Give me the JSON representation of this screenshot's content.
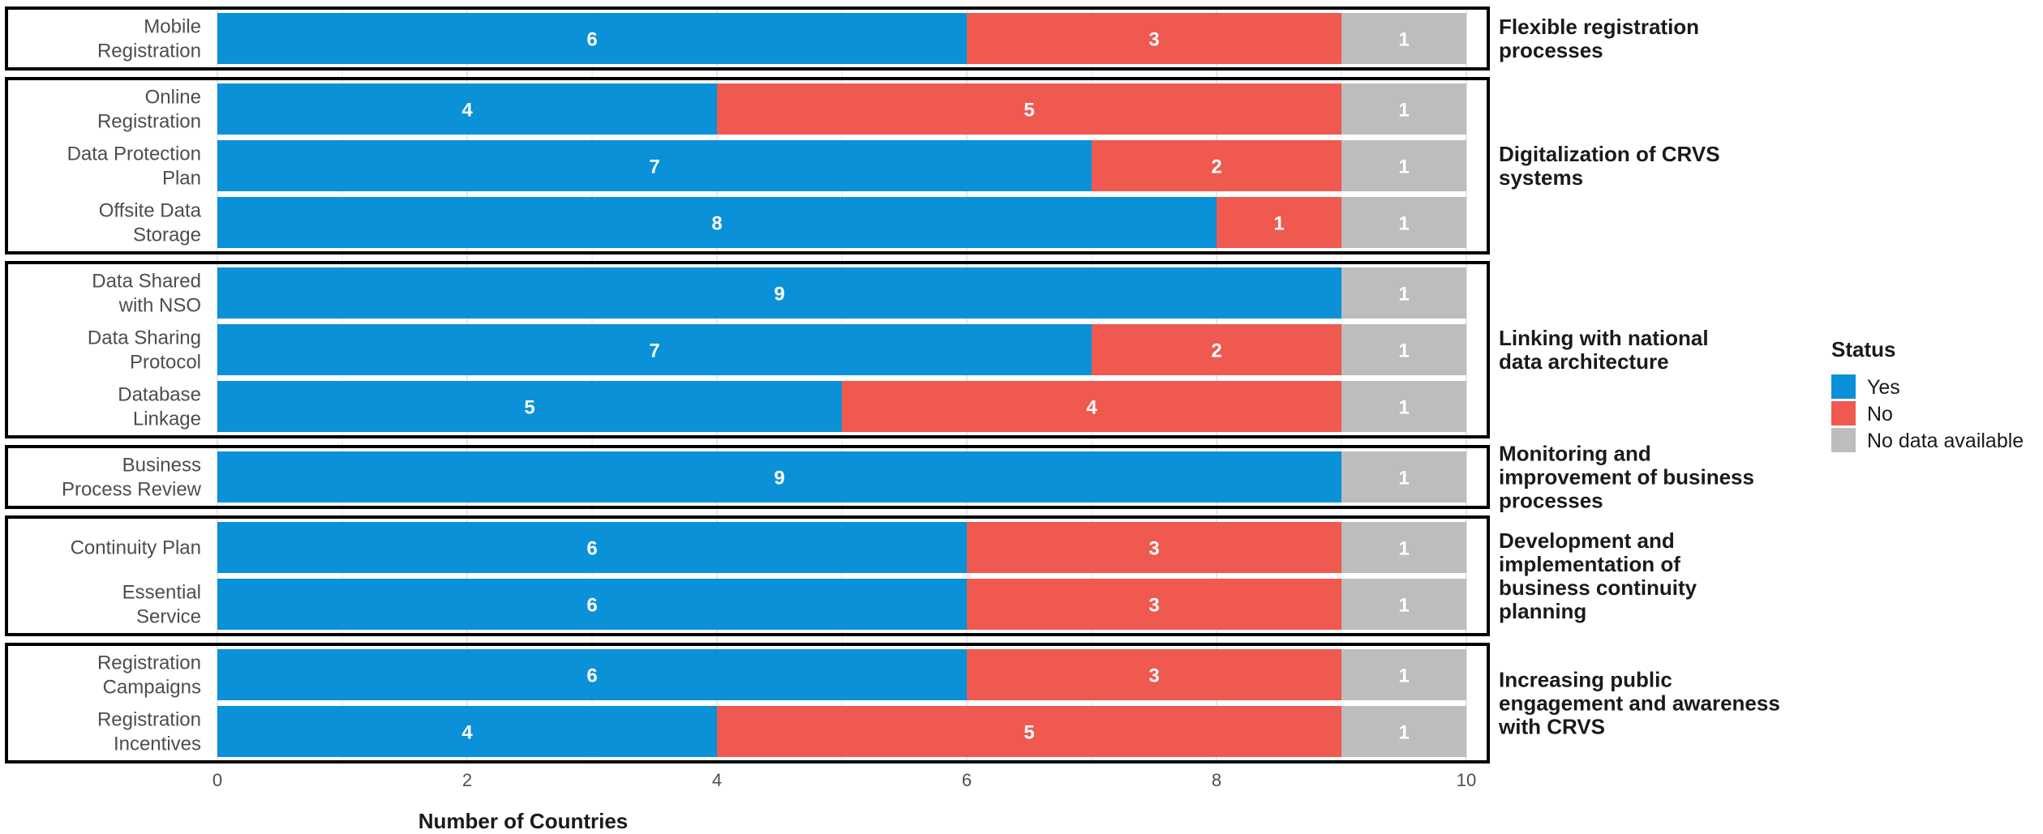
{
  "chart_data": {
    "type": "bar",
    "orientation": "horizontal",
    "stacked": true,
    "xlabel": "Number of Countries",
    "ylabel": "",
    "xlim": [
      0,
      10
    ],
    "xticks": [
      "0",
      "2",
      "4",
      "6",
      "8",
      "10"
    ],
    "grid": true,
    "legend": {
      "title": "Status",
      "placement": "right",
      "entries": [
        {
          "name": "Yes",
          "color": "#0a91d8"
        },
        {
          "name": "No",
          "color": "#ef5950"
        },
        {
          "name": "No data available",
          "color": "#bdbdbd"
        }
      ]
    },
    "groups": [
      {
        "label_lines": [
          "Flexible registration",
          "processes"
        ],
        "items": [
          {
            "label_lines": [
              "Mobile",
              "Registration"
            ],
            "values": {
              "yes": 6,
              "no": 3,
              "na": 1
            }
          }
        ]
      },
      {
        "label_lines": [
          "Digitalization of CRVS",
          "systems"
        ],
        "items": [
          {
            "label_lines": [
              "Online",
              "Registration"
            ],
            "values": {
              "yes": 4,
              "no": 5,
              "na": 1
            }
          },
          {
            "label_lines": [
              "Data Protection",
              "Plan"
            ],
            "values": {
              "yes": 7,
              "no": 2,
              "na": 1
            }
          },
          {
            "label_lines": [
              "Offsite Data",
              "Storage"
            ],
            "values": {
              "yes": 8,
              "no": 1,
              "na": 1
            }
          }
        ]
      },
      {
        "label_lines": [
          "Linking with national",
          "data architecture"
        ],
        "items": [
          {
            "label_lines": [
              "Data Shared",
              "with NSO"
            ],
            "values": {
              "yes": 9,
              "no": 0,
              "na": 1
            }
          },
          {
            "label_lines": [
              "Data Sharing",
              "Protocol"
            ],
            "values": {
              "yes": 7,
              "no": 2,
              "na": 1
            }
          },
          {
            "label_lines": [
              "Database",
              "Linkage"
            ],
            "values": {
              "yes": 5,
              "no": 4,
              "na": 1
            }
          }
        ]
      },
      {
        "label_lines": [
          "Monitoring and",
          "improvement of business",
          "processes"
        ],
        "items": [
          {
            "label_lines": [
              "Business",
              "Process Review"
            ],
            "values": {
              "yes": 9,
              "no": 0,
              "na": 1
            }
          }
        ]
      },
      {
        "label_lines": [
          "Development and",
          "implementation of",
          "business continuity",
          "planning"
        ],
        "items": [
          {
            "label_lines": [
              "Continuity Plan"
            ],
            "values": {
              "yes": 6,
              "no": 3,
              "na": 1
            }
          },
          {
            "label_lines": [
              "Essential",
              "Service"
            ],
            "values": {
              "yes": 6,
              "no": 3,
              "na": 1
            }
          }
        ]
      },
      {
        "label_lines": [
          "Increasing public",
          "engagement and awareness",
          "with CRVS"
        ],
        "items": [
          {
            "label_lines": [
              "Registration",
              "Campaigns"
            ],
            "values": {
              "yes": 6,
              "no": 3,
              "na": 1
            }
          },
          {
            "label_lines": [
              "Registration",
              "Incentives"
            ],
            "values": {
              "yes": 4,
              "no": 5,
              "na": 1
            }
          }
        ]
      }
    ]
  }
}
